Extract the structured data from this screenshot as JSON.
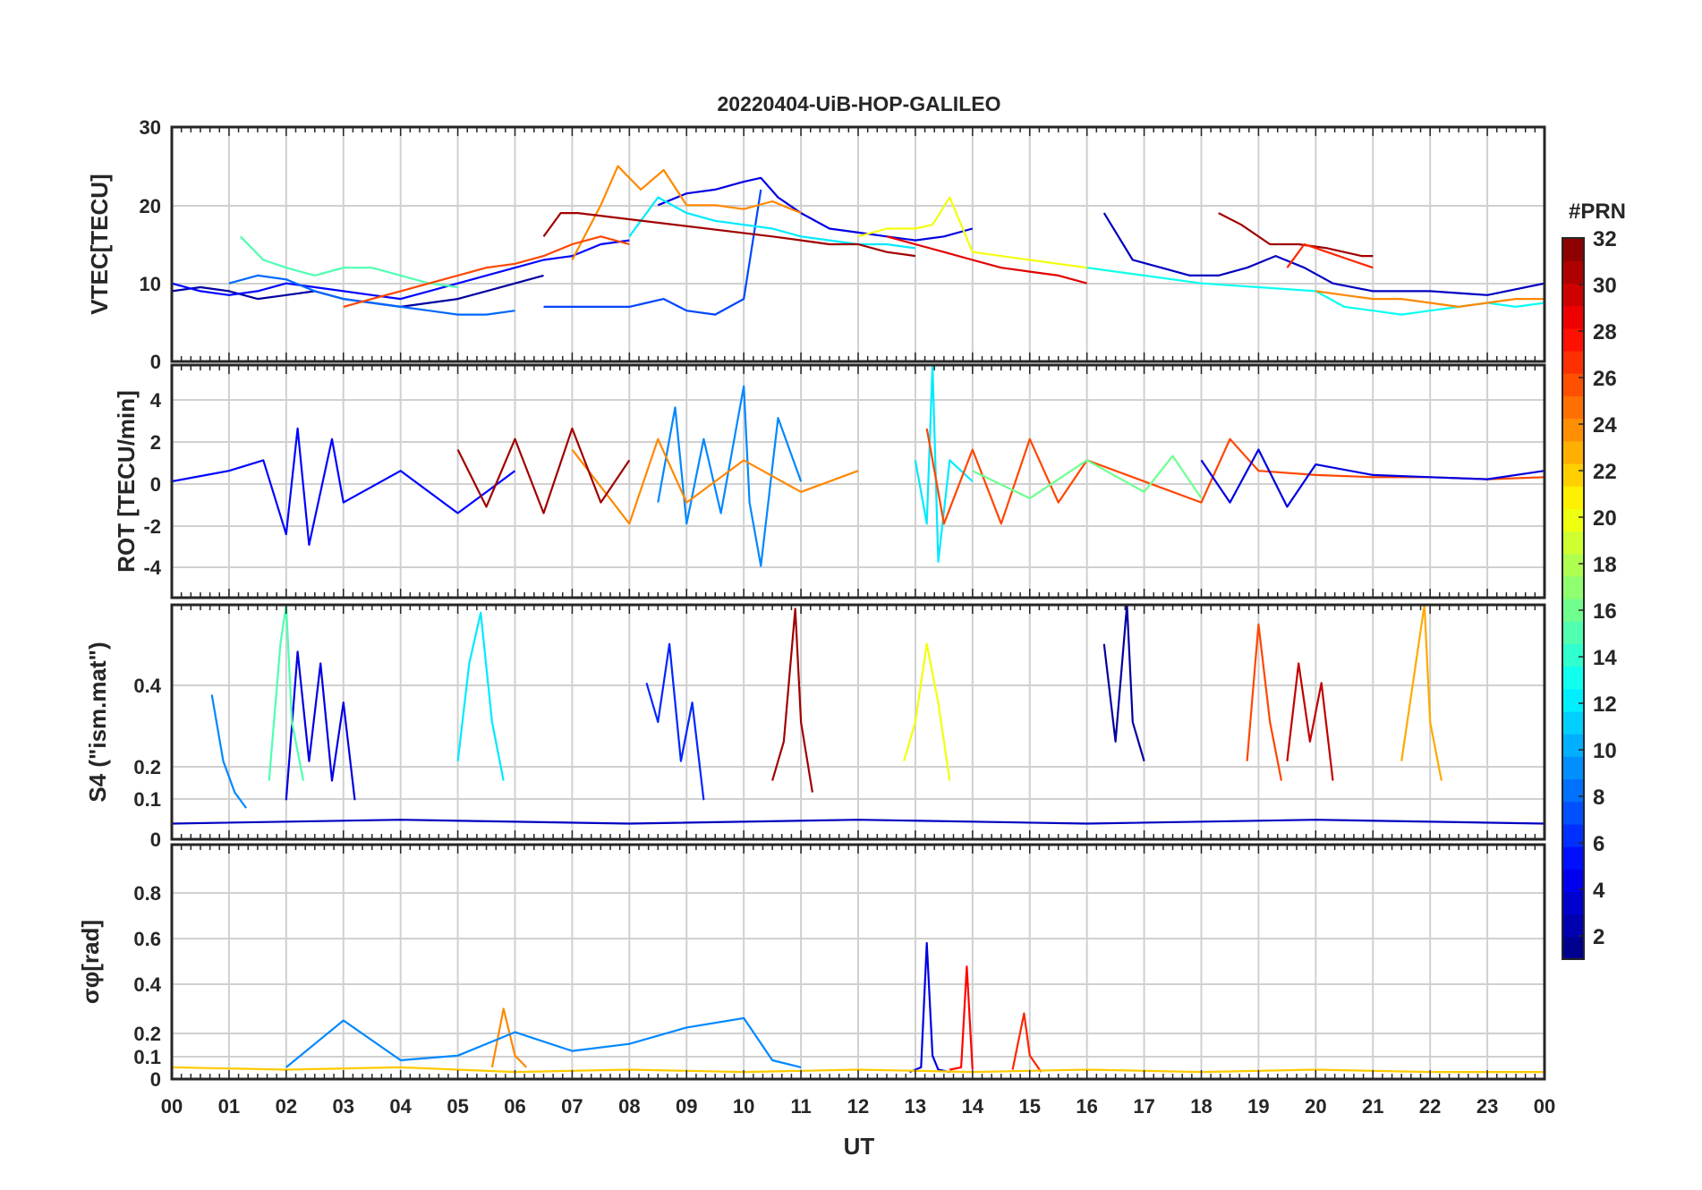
{
  "figure": {
    "title": "20220404-UiB-HOP-GALILEO",
    "xlabel": "UT",
    "x_tick_labels": [
      "00",
      "01",
      "02",
      "03",
      "04",
      "05",
      "06",
      "07",
      "08",
      "09",
      "10",
      "11",
      "12",
      "13",
      "14",
      "15",
      "16",
      "17",
      "18",
      "19",
      "20",
      "21",
      "22",
      "23",
      "00"
    ]
  },
  "colorbar": {
    "label": "#PRN",
    "range": [
      1,
      32
    ],
    "tick_labels": [
      "2",
      "4",
      "6",
      "8",
      "10",
      "12",
      "14",
      "16",
      "18",
      "20",
      "22",
      "24",
      "26",
      "28",
      "30",
      "32"
    ],
    "colormap": "jet",
    "levels": 32
  },
  "chart_data": [
    {
      "type": "line",
      "panel": "vtec",
      "ylabel": "VTEC[TECU]",
      "ylim": [
        0,
        30
      ],
      "y_tick_labels": [
        "0",
        "10",
        "20",
        "30"
      ],
      "x_unit": "hours UT",
      "xlim": [
        0,
        24
      ],
      "grid": true,
      "series": [
        {
          "prn": 2,
          "x": [
            0,
            0.5,
            1,
            1.5,
            2,
            2.5,
            3,
            3.5,
            4,
            4.5,
            5,
            5.5,
            6,
            6.5
          ],
          "y": [
            9,
            9.5,
            9,
            8,
            8.5,
            9,
            8,
            7.5,
            7,
            7.5,
            8,
            9,
            10,
            11
          ]
        },
        {
          "prn": 5,
          "x": [
            0,
            0.5,
            1,
            1.5,
            2,
            2.5,
            3,
            3.5,
            4,
            4.5,
            5,
            5.5,
            6,
            6.5,
            7,
            7.5,
            8
          ],
          "y": [
            10,
            9,
            8.5,
            9,
            10,
            9.5,
            9,
            8.5,
            8,
            9,
            10,
            11,
            12,
            13,
            13.5,
            15,
            15.5
          ]
        },
        {
          "prn": 4,
          "x": [
            8.5,
            9,
            9.5,
            10,
            10.3,
            10.6,
            11,
            11.5,
            12,
            12.5,
            13,
            13.5,
            14
          ],
          "y": [
            20,
            21.5,
            22,
            23,
            23.5,
            21,
            19,
            17,
            16.5,
            16,
            15.5,
            16,
            17
          ]
        },
        {
          "prn": 7,
          "x": [
            6.5,
            7,
            7.5,
            8,
            8.3,
            8.6,
            9,
            9.5,
            10,
            10.3
          ],
          "y": [
            7,
            7,
            7,
            7,
            7.5,
            8,
            6.5,
            6,
            8,
            22
          ]
        },
        {
          "prn": 8,
          "x": [
            1,
            1.5,
            2,
            2.5,
            3,
            3.5,
            4,
            4.5,
            5,
            5.5,
            6
          ],
          "y": [
            10,
            11,
            10.5,
            9,
            8,
            7.5,
            7,
            6.5,
            6,
            6,
            6.5
          ]
        },
        {
          "prn": 12,
          "x": [
            8,
            8.5,
            9,
            9.5,
            10,
            10.5,
            11,
            11.5,
            12,
            12.5,
            13
          ],
          "y": [
            16,
            21,
            19,
            18,
            17.5,
            17,
            16,
            15.5,
            15,
            15,
            14.5
          ]
        },
        {
          "prn": 15,
          "x": [
            1.2,
            1.6,
            2,
            2.5,
            3,
            3.5,
            4,
            4.5,
            5
          ],
          "y": [
            16,
            13,
            12,
            11,
            12,
            12,
            11,
            10,
            9.5
          ]
        },
        {
          "prn": 20,
          "x": [
            12,
            12.5,
            13,
            13.3,
            13.6,
            14,
            15,
            16,
            17
          ],
          "y": [
            16,
            17,
            17,
            17.5,
            21,
            14,
            13,
            12,
            11
          ]
        },
        {
          "prn": 24,
          "x": [
            7,
            7.5,
            7.8,
            8.2,
            8.6,
            9,
            9.5,
            10,
            10.5,
            11
          ],
          "y": [
            13,
            20,
            25,
            22,
            24.5,
            20,
            20,
            19.5,
            20.5,
            19
          ]
        },
        {
          "prn": 26,
          "x": [
            3,
            3.5,
            4,
            4.5,
            5,
            5.5,
            6,
            6.5,
            7,
            7.5,
            8
          ],
          "y": [
            7,
            8,
            9,
            10,
            11,
            12,
            12.5,
            13.5,
            15,
            16,
            15
          ]
        },
        {
          "prn": 29,
          "x": [
            12.5,
            13,
            13.5,
            14,
            14.5,
            15,
            15.5,
            16
          ],
          "y": [
            16,
            15,
            14,
            13,
            12,
            11.5,
            11,
            10
          ]
        },
        {
          "prn": 31,
          "x": [
            6.5,
            6.8,
            7.1,
            10.5,
            11,
            11.5,
            12,
            12.5,
            13
          ],
          "y": [
            16,
            19,
            19,
            16,
            15.5,
            15,
            15,
            14,
            13.5
          ]
        },
        {
          "prn": 3,
          "x": [
            16.3,
            16.8,
            17.3,
            17.8,
            18.3,
            18.8,
            19.3,
            19.8,
            20.3,
            21,
            22,
            23,
            24
          ],
          "y": [
            19,
            13,
            12,
            11,
            11,
            12,
            13.5,
            12,
            10,
            9,
            9,
            8.5,
            10
          ]
        },
        {
          "prn": 13,
          "x": [
            16,
            17,
            18,
            19,
            20,
            20.5,
            21,
            21.5,
            22,
            22.5,
            23,
            23.5,
            24
          ],
          "y": [
            12,
            11,
            10,
            9.5,
            9,
            7,
            6.5,
            6,
            6.5,
            7,
            7.5,
            7,
            7.5
          ]
        },
        {
          "prn": 24,
          "x": [
            20,
            20.5,
            21,
            21.5,
            22,
            22.5,
            23,
            23.5,
            24
          ],
          "y": [
            9,
            8.5,
            8,
            8,
            7.5,
            7,
            7.5,
            8,
            8
          ]
        },
        {
          "prn": 31,
          "x": [
            18.3,
            18.7,
            19.2,
            19.7,
            20.2,
            20.8,
            21
          ],
          "y": [
            19,
            17.5,
            15,
            15,
            14.5,
            13.5,
            13.5
          ]
        },
        {
          "prn": 27,
          "x": [
            19.5,
            19.8,
            20.2,
            20.6,
            21
          ],
          "y": [
            12,
            15,
            14,
            13,
            12
          ]
        }
      ]
    },
    {
      "type": "line",
      "panel": "rot",
      "ylabel": "ROT [TECU/min]",
      "ylim": [
        -5.5,
        5.5
      ],
      "y_tick_labels": [
        "-4",
        "-2",
        "0",
        "2",
        "4"
      ],
      "x_unit": "hours UT",
      "xlim": [
        0,
        24
      ],
      "grid": true,
      "series": [
        {
          "prn": 5,
          "x": [
            0,
            1,
            1.6,
            2,
            2.2,
            2.4,
            2.8,
            3,
            4,
            5,
            6
          ],
          "y": [
            0,
            0.5,
            1,
            -2.5,
            2.5,
            -3,
            2,
            -1,
            0.5,
            -1.5,
            0.5
          ]
        },
        {
          "prn": 9,
          "x": [
            8.5,
            8.8,
            9,
            9.3,
            9.6,
            10,
            10.1,
            10.3,
            10.6,
            11
          ],
          "y": [
            -1,
            3.5,
            -2,
            2,
            -1.5,
            4.5,
            -1,
            -4,
            3,
            0
          ]
        },
        {
          "prn": 12,
          "x": [
            13,
            13.2,
            13.3,
            13.4,
            13.6,
            14
          ],
          "y": [
            1,
            -2,
            5.5,
            -3.8,
            1,
            0
          ]
        },
        {
          "prn": 24,
          "x": [
            7,
            8,
            8.5,
            9,
            10,
            11,
            12
          ],
          "y": [
            1.5,
            -2,
            2,
            -1,
            1,
            -0.5,
            0.5
          ]
        },
        {
          "prn": 26,
          "x": [
            13.2,
            13.5,
            14,
            14.5,
            15,
            15.5,
            16,
            18,
            18.5,
            19,
            20,
            21,
            22,
            23,
            24
          ],
          "y": [
            2.5,
            -2,
            1.5,
            -2,
            2,
            -1,
            1,
            -1,
            2,
            0.5,
            0.3,
            0.2,
            0.2,
            0.1,
            0.2
          ]
        },
        {
          "prn": 31,
          "x": [
            5,
            5.5,
            6,
            6.5,
            7,
            7.5,
            8
          ],
          "y": [
            1.5,
            -1.2,
            2,
            -1.5,
            2.5,
            -1,
            1
          ]
        },
        {
          "prn": 4,
          "x": [
            18,
            18.5,
            19,
            19.5,
            20,
            21,
            22,
            23,
            24
          ],
          "y": [
            1,
            -1,
            1.5,
            -1.2,
            0.8,
            0.3,
            0.2,
            0.1,
            0.5
          ]
        },
        {
          "prn": 16,
          "x": [
            14,
            15,
            16,
            17,
            17.5,
            18
          ],
          "y": [
            0.5,
            -0.8,
            1,
            -0.5,
            1.2,
            -0.8
          ]
        }
      ]
    },
    {
      "type": "line",
      "panel": "s4",
      "ylabel": "S4 (\"ism.mat\")",
      "ylim": [
        0,
        0.6
      ],
      "y_tick_labels": [
        "0",
        "0.1",
        "0.2",
        "0.4"
      ],
      "x_unit": "hours UT",
      "xlim": [
        0,
        24
      ],
      "grid": true,
      "series": [
        {
          "prn": 4,
          "x": [
            2,
            2.2,
            2.4,
            2.6,
            2.8,
            3,
            3.2
          ],
          "y": [
            0.1,
            0.48,
            0.2,
            0.45,
            0.15,
            0.35,
            0.1
          ]
        },
        {
          "prn": 9,
          "x": [
            0.7,
            0.9,
            1.1,
            1.3
          ],
          "y": [
            0.37,
            0.2,
            0.12,
            0.08
          ]
        },
        {
          "prn": 15,
          "x": [
            1.7,
            1.9,
            2,
            2.1,
            2.3
          ],
          "y": [
            0.15,
            0.5,
            0.6,
            0.3,
            0.15
          ]
        },
        {
          "prn": 12,
          "x": [
            5,
            5.2,
            5.4,
            5.6,
            5.8
          ],
          "y": [
            0.2,
            0.45,
            0.58,
            0.3,
            0.15
          ]
        },
        {
          "prn": 6,
          "x": [
            8.3,
            8.5,
            8.7,
            8.9,
            9.1,
            9.3
          ],
          "y": [
            0.4,
            0.3,
            0.5,
            0.2,
            0.35,
            0.1
          ]
        },
        {
          "prn": 31,
          "x": [
            10.5,
            10.7,
            10.9,
            11,
            11.2
          ],
          "y": [
            0.15,
            0.25,
            0.59,
            0.3,
            0.12
          ]
        },
        {
          "prn": 20,
          "x": [
            12.8,
            13,
            13.2,
            13.4,
            13.6
          ],
          "y": [
            0.2,
            0.3,
            0.5,
            0.35,
            0.15
          ]
        },
        {
          "prn": 2,
          "x": [
            16.3,
            16.5,
            16.7,
            16.8,
            17
          ],
          "y": [
            0.5,
            0.25,
            0.6,
            0.3,
            0.2
          ]
        },
        {
          "prn": 26,
          "x": [
            18.8,
            19,
            19.2,
            19.4
          ],
          "y": [
            0.2,
            0.55,
            0.3,
            0.15
          ]
        },
        {
          "prn": 30,
          "x": [
            19.5,
            19.7,
            19.9,
            20.1,
            20.3
          ],
          "y": [
            0.2,
            0.45,
            0.25,
            0.4,
            0.15
          ]
        },
        {
          "prn": 23,
          "x": [
            21.5,
            21.7,
            21.9,
            22,
            22.2
          ],
          "y": [
            0.2,
            0.4,
            0.6,
            0.3,
            0.15
          ]
        },
        {
          "prn": 3,
          "x": [
            0,
            4,
            8,
            12,
            16,
            20,
            24
          ],
          "y": [
            0.04,
            0.05,
            0.04,
            0.05,
            0.04,
            0.05,
            0.04
          ]
        }
      ]
    },
    {
      "type": "line",
      "panel": "sigma_phi",
      "ylabel": "σφ[rad]",
      "ylim": [
        0,
        1
      ],
      "y_tick_labels": [
        "0",
        "0.1",
        "0.2",
        "0.4",
        "0.6",
        "0.8"
      ],
      "x_unit": "hours UT",
      "xlim": [
        0,
        24
      ],
      "grid": true,
      "series": [
        {
          "prn": 4,
          "x": [
            12.9,
            13.1,
            13.2,
            13.3,
            13.4,
            13.6
          ],
          "y": [
            0.03,
            0.05,
            0.58,
            0.1,
            0.04,
            0.03
          ]
        },
        {
          "prn": 28,
          "x": [
            13.6,
            13.8,
            13.9,
            14
          ],
          "y": [
            0.04,
            0.05,
            0.48,
            0.04
          ]
        },
        {
          "prn": 27,
          "x": [
            14.7,
            14.9,
            15,
            15.2
          ],
          "y": [
            0.04,
            0.28,
            0.1,
            0.03
          ]
        },
        {
          "prn": 24,
          "x": [
            5.6,
            5.8,
            6,
            6.2
          ],
          "y": [
            0.05,
            0.3,
            0.1,
            0.05
          ]
        },
        {
          "prn": 9,
          "x": [
            2,
            2.5,
            3,
            4,
            5,
            6,
            7,
            8,
            9,
            10,
            10.5,
            11
          ],
          "y": [
            0.05,
            0.15,
            0.25,
            0.08,
            0.1,
            0.2,
            0.12,
            0.15,
            0.22,
            0.26,
            0.08,
            0.05
          ]
        },
        {
          "prn": 22,
          "x": [
            0,
            2,
            4,
            6,
            8,
            10,
            12,
            14,
            16,
            18,
            20,
            22,
            24
          ],
          "y": [
            0.05,
            0.04,
            0.05,
            0.03,
            0.04,
            0.03,
            0.04,
            0.03,
            0.04,
            0.03,
            0.04,
            0.03,
            0.03
          ]
        }
      ]
    }
  ]
}
